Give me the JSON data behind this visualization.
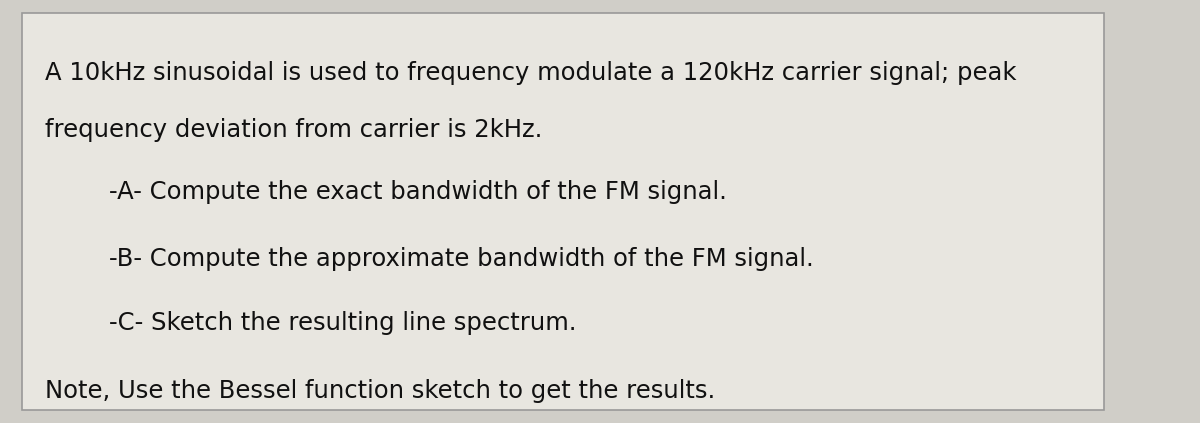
{
  "background_color": "#d0cec8",
  "box_color": "#e8e6e0",
  "box_edge_color": "#999999",
  "line1": "A 10kHz sinusoidal is used to frequency modulate a 120kHz carrier signal; peak",
  "line2": "frequency deviation from carrier is 2kHz.",
  "item_a": "    -A- Compute the exact bandwidth of the FM signal.",
  "item_b": "    -B- Compute the approximate bandwidth of the FM signal.",
  "item_c": "    -C- Sketch the resulting line spectrum.",
  "note": "Note, Use the Bessel function sketch to get the results.",
  "font_size_main": 17.5,
  "font_size_items": 17.5,
  "text_color": "#111111",
  "fig_width": 12.0,
  "fig_height": 4.23
}
